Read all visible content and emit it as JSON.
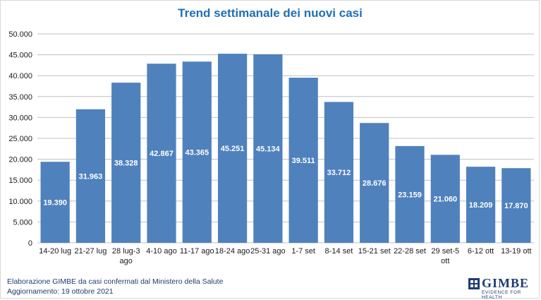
{
  "chart_data": {
    "type": "bar",
    "title": "Trend settimanale dei nuovi casi",
    "categories": [
      [
        "14-20 lug"
      ],
      [
        "21-27 lug"
      ],
      [
        "28 lug-3",
        "ago"
      ],
      [
        "4-10 ago"
      ],
      [
        "11-17 ago"
      ],
      [
        "18-24 ago"
      ],
      [
        "25-31 ago"
      ],
      [
        "1-7 set"
      ],
      [
        "8-14 set"
      ],
      [
        "15-21 set"
      ],
      [
        "22-28 set"
      ],
      [
        "29 set-5",
        "ott"
      ],
      [
        "6-12 ott"
      ],
      [
        "13-19 ott"
      ]
    ],
    "values": [
      19390,
      31963,
      38328,
      42867,
      43365,
      45251,
      45134,
      39511,
      33712,
      28676,
      23159,
      21060,
      18209,
      17870
    ],
    "value_labels": [
      "19.390",
      "31.963",
      "38.328",
      "42.867",
      "43.365",
      "45.251",
      "45.134",
      "39.511",
      "33.712",
      "28.676",
      "23.159",
      "21.060",
      "18.209",
      "17.870"
    ],
    "yticks": [
      0,
      5000,
      10000,
      15000,
      20000,
      25000,
      30000,
      35000,
      40000,
      45000,
      50000
    ],
    "ytick_labels": [
      "0",
      "5.000",
      "10.000",
      "15.000",
      "20.000",
      "25.000",
      "30.000",
      "35.000",
      "40.000",
      "45.000",
      "50.000"
    ],
    "ylim": [
      0,
      50000
    ],
    "grid": true,
    "xlabel": "",
    "ylabel": "",
    "bar_color": "#4f81bd",
    "grid_color": "#c0c0c0"
  },
  "footer": {
    "line1": "Elaborazione GIMBE da casi confermati dal Ministero della Salute",
    "line2": "Aggiornamento: 19 ottobre 2021"
  },
  "logo": {
    "name": "GIMBE",
    "tagline": "EVIDENCE FOR HEALTH",
    "color": "#1f3b73"
  }
}
